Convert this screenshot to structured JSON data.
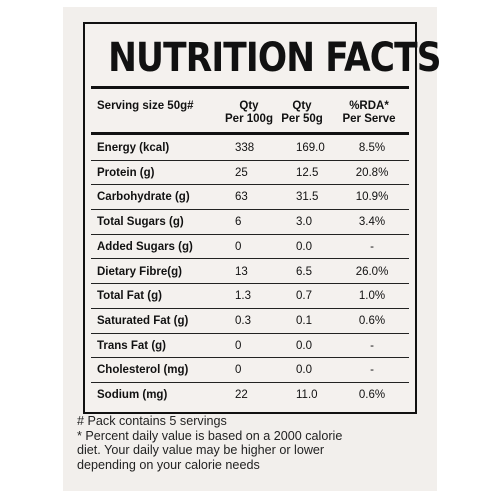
{
  "title": "NUTRITION FACTS",
  "header": {
    "serving": "Serving size 50g#",
    "col1_line1": "Qty",
    "col1_line2": "Per 100g",
    "col2_line1": "Qty",
    "col2_line2": "Per 50g",
    "col3_line1": "%RDA*",
    "col3_line2": "Per Serve"
  },
  "rows": [
    {
      "name": "Energy (kcal)",
      "per100": "338",
      "per50": "169.0",
      "rda": "8.5%"
    },
    {
      "name": "Protein (g)",
      "per100": "25",
      "per50": "12.5",
      "rda": "20.8%"
    },
    {
      "name": "Carbohydrate (g)",
      "per100": "63",
      "per50": "31.5",
      "rda": "10.9%"
    },
    {
      "name": "Total Sugars (g)",
      "per100": "6",
      "per50": "3.0",
      "rda": "3.4%"
    },
    {
      "name": "Added Sugars (g)",
      "per100": "0",
      "per50": "0.0",
      "rda": "-"
    },
    {
      "name": "Dietary Fibre(g)",
      "per100": "13",
      "per50": "6.5",
      "rda": "26.0%"
    },
    {
      "name": "Total Fat (g)",
      "per100": "1.3",
      "per50": "0.7",
      "rda": "1.0%"
    },
    {
      "name": "Saturated Fat (g)",
      "per100": "0.3",
      "per50": "0.1",
      "rda": "0.6%"
    },
    {
      "name": "Trans Fat (g)",
      "per100": "0",
      "per50": "0.0",
      "rda": "-"
    },
    {
      "name": "Cholesterol (mg)",
      "per100": "0",
      "per50": "0.0",
      "rda": "-"
    },
    {
      "name": "Sodium (mg)",
      "per100": "22",
      "per50": "11.0",
      "rda": "0.6%"
    }
  ],
  "notes": [
    "# Pack contains 5 servings",
    "* Percent daily value is based on a 2000 calorie",
    "diet. Your daily value may be higher or lower",
    "depending on your calorie needs"
  ]
}
